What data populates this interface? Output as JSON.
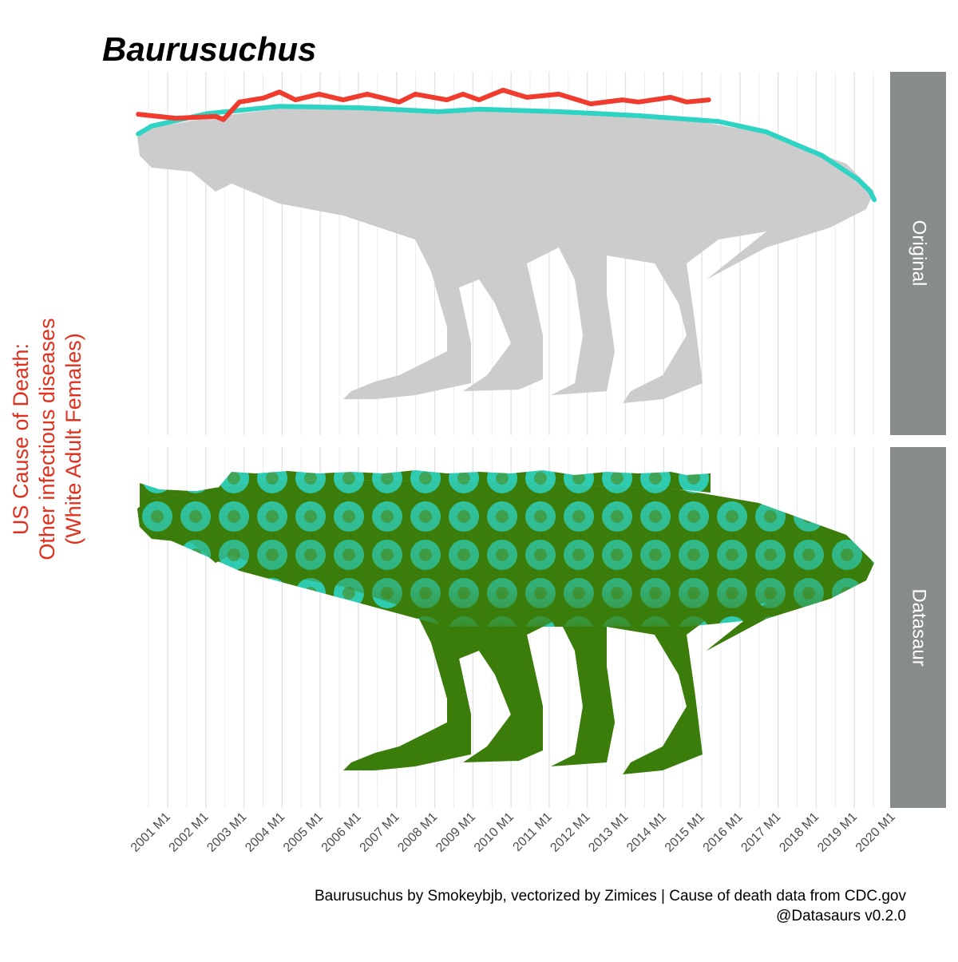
{
  "chart_data": {
    "type": "line",
    "title": "Baurusuchus",
    "ylabel": [
      "US Cause of Death:",
      "Other infectious diseases",
      "(White Adult Females)"
    ],
    "panels": [
      "Original",
      "Datasaur"
    ],
    "caption": [
      "Baurusuchus by Smokeybjb, vectorized by Zimices | Cause of death data from CDC.gov",
      "@Datasaurs v0.2.0"
    ],
    "xlim": [
      1999.64,
      2020.25
    ],
    "xticks": [
      {
        "value": 2001,
        "label": "2001 M1"
      },
      {
        "value": 2002,
        "label": "2002 M1"
      },
      {
        "value": 2003,
        "label": "2003 M1"
      },
      {
        "value": 2004,
        "label": "2004 M1"
      },
      {
        "value": 2005,
        "label": "2005 M1"
      },
      {
        "value": 2006,
        "label": "2006 M1"
      },
      {
        "value": 2007,
        "label": "2007 M1"
      },
      {
        "value": 2008,
        "label": "2008 M1"
      },
      {
        "value": 2009,
        "label": "2009 M1"
      },
      {
        "value": 2010,
        "label": "2010 M1"
      },
      {
        "value": 2011,
        "label": "2011 M1"
      },
      {
        "value": 2012,
        "label": "2012 M1"
      },
      {
        "value": 2013,
        "label": "2013 M1"
      },
      {
        "value": 2014,
        "label": "2014 M1"
      },
      {
        "value": 2015,
        "label": "2015 M1"
      },
      {
        "value": 2016,
        "label": "2016 M1"
      },
      {
        "value": 2017,
        "label": "2017 M1"
      },
      {
        "value": 2018,
        "label": "2018 M1"
      },
      {
        "value": 2019,
        "label": "2019 M1"
      },
      {
        "value": 2020,
        "label": "2020 M1"
      }
    ],
    "ylim": [
      0,
      100
    ],
    "grid": true,
    "series": [
      {
        "color": "#f03c2e",
        "x": [
          2000.23,
          2001.21,
          2002.26,
          2002.46,
          2002.88,
          2003.51,
          2003.93,
          2004.35,
          2004.97,
          2005.6,
          2006.23,
          2007.07,
          2007.49,
          2008.32,
          2008.74,
          2009.16,
          2009.79,
          2010.41,
          2011.25,
          2012.09,
          2012.92,
          2013.34,
          2014.18,
          2014.6,
          2015.18
        ],
        "values": [
          88.2,
          87.1,
          87.6,
          86.7,
          91.6,
          92.7,
          94.4,
          92.2,
          93.8,
          92.2,
          93.8,
          91.6,
          93.8,
          92.2,
          93.8,
          92.2,
          94.9,
          92.9,
          93.8,
          91.1,
          92.2,
          91.6,
          92.9,
          91.6,
          92.2
        ]
      },
      {
        "color": "#2dd4c4",
        "x": [
          2000.23,
          2000.58,
          2002.05,
          2003.93,
          2006.02,
          2008.11,
          2009.16,
          2011.25,
          2013.34,
          2015.43,
          2016.69,
          2018.15,
          2019.1,
          2019.41,
          2019.52
        ],
        "values": [
          82.7,
          84.9,
          88.4,
          90.4,
          90.0,
          88.9,
          89.6,
          88.9,
          87.8,
          86.2,
          83.3,
          76.7,
          70.0,
          66.7,
          64.4
        ]
      }
    ]
  }
}
